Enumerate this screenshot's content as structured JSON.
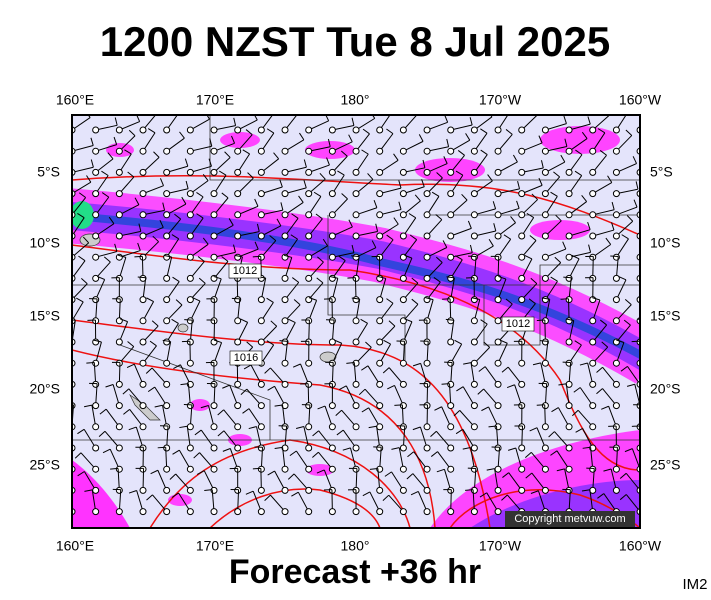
{
  "title": "1200 NZST Tue 8 Jul 2025",
  "longitude_labels": [
    "160°E",
    "170°E",
    "180°",
    "170°W",
    "160°W"
  ],
  "latitude_labels": [
    "5°S",
    "10°S",
    "15°S",
    "20°S",
    "25°S"
  ],
  "isobar_labels": [
    "1012",
    "1016",
    "1012"
  ],
  "copyright": "Copyright metvuw.com",
  "footer": "Forecast +36 hr",
  "code": "IM2"
}
